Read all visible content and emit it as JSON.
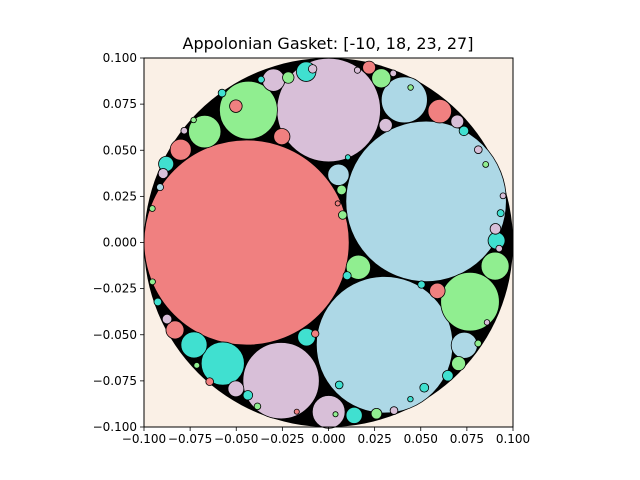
{
  "chart_data": {
    "type": "scatter",
    "title": "Appolonian Gasket: [-10, 18, 23, 27]",
    "xlabel": "",
    "ylabel": "",
    "xlim": [
      -0.1,
      0.1
    ],
    "ylim": [
      -0.1,
      0.1
    ],
    "xticks": [
      "−0.100",
      "−0.075",
      "−0.050",
      "−0.025",
      "0.000",
      "0.025",
      "0.050",
      "0.075",
      "0.100"
    ],
    "yticks": [
      "−0.100",
      "−0.075",
      "−0.050",
      "−0.025",
      "0.000",
      "0.025",
      "0.050",
      "0.075",
      "0.100"
    ],
    "grid": false,
    "background_color": "#faf0e6",
    "outer_circle": {
      "cx": 0.0,
      "cy": 0.0,
      "r": 0.1,
      "color": "#000000"
    },
    "circles": [
      {
        "cx": -0.0444,
        "cy": 0.0,
        "r": 0.0556,
        "color": "#f08080"
      },
      {
        "cx": 0.0529,
        "cy": 0.0223,
        "r": 0.0435,
        "color": "#add8e6"
      },
      {
        "cx": 0.0304,
        "cy": -0.0554,
        "r": 0.037,
        "color": "#add8e6"
      },
      {
        "cx": 0.0001,
        "cy": 0.0718,
        "r": 0.0281,
        "color": "#d8bfd8"
      },
      {
        "cx": -0.0257,
        "cy": -0.0749,
        "r": 0.0207,
        "color": "#d8bfd8"
      },
      {
        "cx": 0.0767,
        "cy": -0.0321,
        "r": 0.0159,
        "color": "#90ee90"
      },
      {
        "cx": -0.0434,
        "cy": 0.0717,
        "r": 0.0157,
        "color": "#90ee90"
      },
      {
        "cx": 0.0411,
        "cy": 0.0773,
        "r": 0.0125,
        "color": "#add8e6"
      },
      {
        "cx": -0.0573,
        "cy": -0.0656,
        "r": 0.0117,
        "color": "#40e0d0"
      },
      {
        "cx": -0.0671,
        "cy": 0.0601,
        "r": 0.0088,
        "color": "#90ee90"
      },
      {
        "cx": 0.0162,
        "cy": -0.0134,
        "r": 0.0066,
        "color": "#90ee90"
      },
      {
        "cx": 0.0736,
        "cy": -0.0557,
        "r": 0.0071,
        "color": "#add8e6"
      },
      {
        "cx": -0.0729,
        "cy": -0.0555,
        "r": 0.0071,
        "color": "#40e0d0"
      },
      {
        "cx": 0.0903,
        "cy": -0.0128,
        "r": 0.0076,
        "color": "#90ee90"
      },
      {
        "cx": 0.0001,
        "cy": -0.0918,
        "r": 0.0089,
        "color": "#d8bfd8"
      },
      {
        "cx": -0.0801,
        "cy": 0.0503,
        "r": 0.0057,
        "color": "#f08080"
      },
      {
        "cx": 0.0603,
        "cy": 0.0712,
        "r": 0.0064,
        "color": "#f08080"
      },
      {
        "cx": -0.0298,
        "cy": 0.088,
        "r": 0.0061,
        "color": "#d8bfd8"
      },
      {
        "cx": 0.0286,
        "cy": 0.089,
        "r": 0.0052,
        "color": "#90ee90"
      },
      {
        "cx": 0.0054,
        "cy": 0.0367,
        "r": 0.0058,
        "color": "#add8e6"
      },
      {
        "cx": -0.0121,
        "cy": 0.0926,
        "r": 0.0053,
        "color": "#40e0d0"
      },
      {
        "cx": 0.0139,
        "cy": -0.0937,
        "r": 0.0044,
        "color": "#40e0d0"
      },
      {
        "cx": -0.0119,
        "cy": -0.0513,
        "r": 0.0048,
        "color": "#40e0d0"
      },
      {
        "cx": 0.0911,
        "cy": 0.001,
        "r": 0.0046,
        "color": "#40e0d0"
      },
      {
        "cx": -0.0832,
        "cy": -0.0474,
        "r": 0.0049,
        "color": "#f08080"
      },
      {
        "cx": -0.0253,
        "cy": 0.0574,
        "r": 0.0044,
        "color": "#f08080"
      },
      {
        "cx": 0.059,
        "cy": -0.0262,
        "r": 0.0042,
        "color": "#f08080"
      },
      {
        "cx": -0.0502,
        "cy": 0.0739,
        "r": 0.0034,
        "color": "#f08080"
      },
      {
        "cx": -0.088,
        "cy": 0.0426,
        "r": 0.0041,
        "color": "#40e0d0"
      },
      {
        "cx": -0.0502,
        "cy": -0.0793,
        "r": 0.0043,
        "color": "#d8bfd8"
      },
      {
        "cx": 0.0705,
        "cy": -0.0656,
        "r": 0.0038,
        "color": "#90ee90"
      },
      {
        "cx": 0.022,
        "cy": 0.0948,
        "r": 0.0035,
        "color": "#f08080"
      },
      {
        "cx": 0.0698,
        "cy": 0.0656,
        "r": 0.0035,
        "color": "#d8bfd8"
      },
      {
        "cx": 0.031,
        "cy": 0.0636,
        "r": 0.0036,
        "color": "#d8bfd8"
      },
      {
        "cx": 0.0071,
        "cy": 0.0285,
        "r": 0.0026,
        "color": "#90ee90"
      },
      {
        "cx": 0.0077,
        "cy": 0.0149,
        "r": 0.0023,
        "color": "#90ee90"
      },
      {
        "cx": 0.0905,
        "cy": 0.0074,
        "r": 0.0029,
        "color": "#d8bfd8"
      },
      {
        "cx": -0.0896,
        "cy": 0.0374,
        "r": 0.0027,
        "color": "#d8bfd8"
      },
      {
        "cx": 0.026,
        "cy": -0.0928,
        "r": 0.0029,
        "color": "#90ee90"
      },
      {
        "cx": 0.0647,
        "cy": -0.0722,
        "r": 0.0029,
        "color": "#40e0d0"
      },
      {
        "cx": -0.0437,
        "cy": -0.0828,
        "r": 0.0026,
        "color": "#40e0d0"
      },
      {
        "cx": -0.0218,
        "cy": 0.0894,
        "r": 0.0031,
        "color": "#90ee90"
      },
      {
        "cx": 0.0734,
        "cy": 0.0605,
        "r": 0.0026,
        "color": "#40e0d0"
      },
      {
        "cx": 0.0812,
        "cy": 0.0503,
        "r": 0.0021,
        "color": "#d8bfd8"
      },
      {
        "cx": -0.0086,
        "cy": 0.0941,
        "r": 0.0023,
        "color": "#d8bfd8"
      },
      {
        "cx": 0.0519,
        "cy": -0.0787,
        "r": 0.0024,
        "color": "#40e0d0"
      },
      {
        "cx": -0.0875,
        "cy": -0.0415,
        "r": 0.0026,
        "color": "#d8bfd8"
      },
      {
        "cx": -0.0644,
        "cy": -0.0754,
        "r": 0.0021,
        "color": "#f08080"
      },
      {
        "cx": 0.0101,
        "cy": -0.018,
        "r": 0.0022,
        "color": "#40e0d0"
      },
      {
        "cx": -0.0072,
        "cy": -0.0494,
        "r": 0.002,
        "color": "#f08080"
      },
      {
        "cx": 0.0058,
        "cy": -0.0772,
        "r": 0.0021,
        "color": "#40e0d0"
      },
      {
        "cx": 0.0504,
        "cy": -0.0228,
        "r": 0.002,
        "color": "#40e0d0"
      },
      {
        "cx": 0.0933,
        "cy": 0.0159,
        "r": 0.0019,
        "color": "#40e0d0"
      },
      {
        "cx": 0.0925,
        "cy": -0.0033,
        "r": 0.0018,
        "color": "#d8bfd8"
      },
      {
        "cx": -0.0913,
        "cy": 0.03,
        "r": 0.0019,
        "color": "#add8e6"
      },
      {
        "cx": -0.0925,
        "cy": -0.0322,
        "r": 0.0021,
        "color": "#40e0d0"
      },
      {
        "cx": 0.0355,
        "cy": -0.0911,
        "r": 0.0021,
        "color": "#d8bfd8"
      },
      {
        "cx": -0.0577,
        "cy": 0.081,
        "r": 0.0021,
        "color": "#40e0d0"
      },
      {
        "cx": 0.0351,
        "cy": 0.0917,
        "r": 0.0018,
        "color": "#d8bfd8"
      },
      {
        "cx": 0.0157,
        "cy": 0.0934,
        "r": 0.0017,
        "color": "#d8bfd8"
      },
      {
        "cx": -0.0782,
        "cy": 0.0606,
        "r": 0.0018,
        "color": "#d8bfd8"
      },
      {
        "cx": 0.0811,
        "cy": -0.0547,
        "r": 0.0018,
        "color": "#90ee90"
      },
      {
        "cx": -0.0385,
        "cy": -0.0888,
        "r": 0.0018,
        "color": "#90ee90"
      },
      {
        "cx": -0.0365,
        "cy": 0.0883,
        "r": 0.0018,
        "color": "#40e0d0"
      },
      {
        "cx": 0.0946,
        "cy": 0.0253,
        "r": 0.0016,
        "color": "#d8bfd8"
      },
      {
        "cx": -0.0955,
        "cy": 0.0184,
        "r": 0.0016,
        "color": "#90ee90"
      },
      {
        "cx": -0.0954,
        "cy": -0.0213,
        "r": 0.0016,
        "color": "#90ee90"
      },
      {
        "cx": 0.0445,
        "cy": 0.084,
        "r": 0.0015,
        "color": "#90ee90"
      },
      {
        "cx": 0.0852,
        "cy": 0.0423,
        "r": 0.0016,
        "color": "#90ee90"
      },
      {
        "cx": -0.0731,
        "cy": 0.0664,
        "r": 0.0015,
        "color": "#90ee90"
      },
      {
        "cx": 0.0444,
        "cy": -0.0849,
        "r": 0.0015,
        "color": "#40e0d0"
      },
      {
        "cx": -0.0714,
        "cy": -0.0666,
        "r": 0.0016,
        "color": "#90ee90"
      },
      {
        "cx": 0.0859,
        "cy": -0.0433,
        "r": 0.0015,
        "color": "#d8bfd8"
      },
      {
        "cx": 0.0038,
        "cy": -0.0931,
        "r": 0.0014,
        "color": "#90ee90"
      },
      {
        "cx": -0.0172,
        "cy": -0.0917,
        "r": 0.0014,
        "color": "#f08080"
      },
      {
        "cx": 0.0105,
        "cy": 0.0462,
        "r": 0.0014,
        "color": "#40e0d0"
      },
      {
        "cx": 0.005,
        "cy": 0.0212,
        "r": 0.0014,
        "color": "#f08080"
      }
    ]
  }
}
